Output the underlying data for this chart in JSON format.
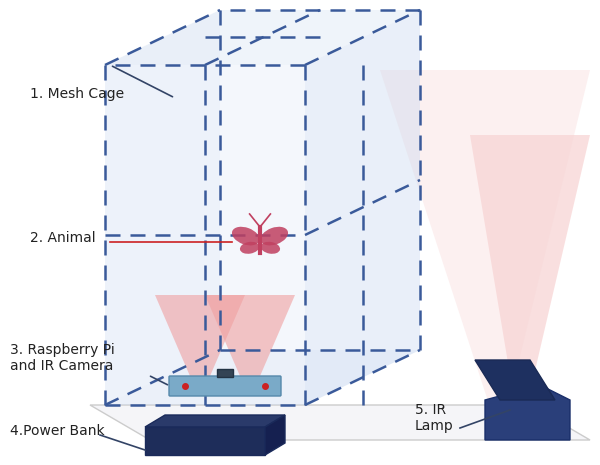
{
  "bg_color": "#ffffff",
  "cage_color": "#c8d8f0",
  "cage_edge_color": "#3a5a9a",
  "cage_alpha": 0.35,
  "pi_color": "#7aaac8",
  "power_bank_color": "#1e2d5a",
  "ir_lamp_color": "#2a3f7a",
  "moth_color": "#c04060",
  "ir_light_color": "#f0a0a0",
  "floor_color": "#f0f0f5",
  "label_color": "#222222",
  "arrow_color": "#444466",
  "animal_line_color": "#cc2222",
  "labels": {
    "mesh_cage": "1. Mesh Cage",
    "animal": "2. Animal",
    "raspi": "3. Raspberry Pi\nand IR Camera",
    "power_bank": "4.Power Bank",
    "ir_lamp": "5. IR\nLamp"
  }
}
